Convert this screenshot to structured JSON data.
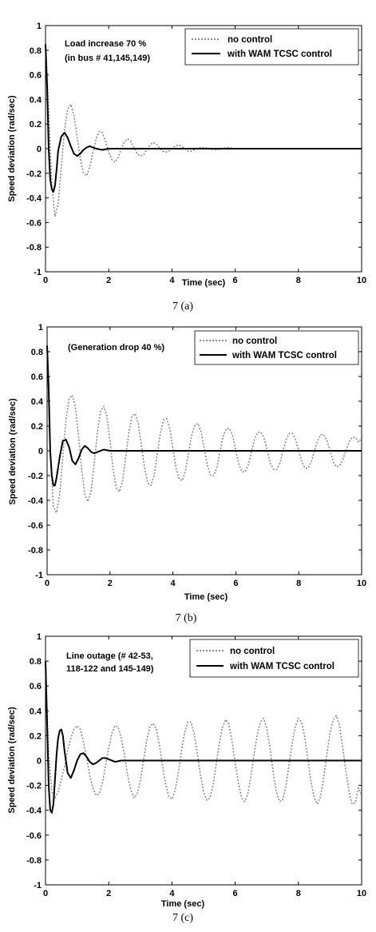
{
  "chart_data": [
    {
      "type": "line",
      "caption": "7 (a)",
      "xlabel": "Time (sec)",
      "ylabel": "Speed deviation (rad/sec)",
      "xlim": [
        0,
        10
      ],
      "ylim": [
        -1,
        1
      ],
      "xticks": [
        "0",
        "2",
        "4",
        "6",
        "8",
        "10"
      ],
      "yticks": [
        "1",
        "0.8",
        "0.6",
        "0.4",
        "0.2",
        "0",
        "-0.2",
        "-0.4",
        "-0.6",
        "-0.8",
        "-1"
      ],
      "annotation": [
        "Load increase 70 %",
        "(in bus # 41,145,149)"
      ],
      "legend_position": "top-right",
      "grid": false,
      "series": [
        {
          "name": "no control",
          "style": "dotted",
          "color": "#8a8a8a",
          "x": [
            0,
            0.05,
            0.1,
            0.15,
            0.2,
            0.3,
            0.4,
            0.5,
            0.6,
            0.7,
            0.8,
            0.9,
            1.0,
            1.1,
            1.2,
            1.3,
            1.4,
            1.5,
            1.6,
            1.7,
            1.8,
            1.9,
            2.0,
            2.1,
            2.2,
            2.3,
            2.4,
            2.5,
            2.6,
            2.7,
            2.8,
            2.9,
            3.0,
            3.1,
            3.2,
            3.3,
            3.4,
            3.5,
            3.6,
            3.7,
            3.8,
            3.9,
            4.0,
            4.1,
            4.2,
            4.3,
            4.4,
            4.5,
            4.6,
            4.7,
            4.8,
            4.9,
            5.0,
            5.2,
            5.4,
            5.6,
            5.8,
            6.0,
            6.2,
            6.4,
            6.6
          ],
          "y": [
            0.85,
            0.6,
            0.3,
            0.0,
            -0.3,
            -0.55,
            -0.45,
            -0.15,
            0.15,
            0.32,
            0.36,
            0.27,
            0.1,
            -0.08,
            -0.2,
            -0.22,
            -0.15,
            -0.03,
            0.08,
            0.14,
            0.13,
            0.06,
            -0.03,
            -0.09,
            -0.11,
            -0.07,
            0.0,
            0.06,
            0.08,
            0.06,
            0.01,
            -0.04,
            -0.06,
            -0.05,
            -0.01,
            0.03,
            0.05,
            0.04,
            0.01,
            -0.02,
            -0.03,
            -0.02,
            0.0,
            0.02,
            0.03,
            0.02,
            0.0,
            -0.02,
            -0.02,
            -0.01,
            0.0,
            0.01,
            0.01,
            0.0,
            -0.01,
            0.0,
            0.01,
            0.0,
            0.0,
            0.0,
            0.0
          ]
        },
        {
          "name": "with WAM TCSC control",
          "style": "solid",
          "color": "#000000",
          "x": [
            0,
            0.05,
            0.1,
            0.15,
            0.2,
            0.25,
            0.3,
            0.35,
            0.4,
            0.5,
            0.6,
            0.7,
            0.8,
            0.9,
            1.0,
            1.1,
            1.2,
            1.3,
            1.4,
            1.5,
            1.6,
            1.8,
            2.0,
            2.5,
            3.0,
            4.0,
            5.0,
            6.0,
            7.0,
            8.0,
            9.0,
            10.0
          ],
          "y": [
            0.85,
            0.5,
            0.0,
            -0.25,
            -0.33,
            -0.35,
            -0.3,
            -0.17,
            -0.02,
            0.1,
            0.13,
            0.09,
            0.02,
            -0.04,
            -0.06,
            -0.04,
            -0.01,
            0.01,
            0.02,
            0.01,
            0.0,
            -0.01,
            0.0,
            0.0,
            0.0,
            0.0,
            0.0,
            0.0,
            0.0,
            0.0,
            0.0,
            0.0
          ]
        }
      ]
    },
    {
      "type": "line",
      "caption": "7 (b)",
      "xlabel": "Time (sec)",
      "ylabel": "Speed deviation (rad/sec)",
      "xlim": [
        0,
        10
      ],
      "ylim": [
        -1,
        1
      ],
      "xticks": [
        "0",
        "2",
        "4",
        "6",
        "8",
        "10"
      ],
      "yticks": [
        "1",
        "0.8",
        "0.6",
        "0.4",
        "0.2",
        "0",
        "-0.2",
        "-0.4",
        "-0.6",
        "-0.8",
        "-1"
      ],
      "annotation": [
        "(Generation drop 40 %)"
      ],
      "legend_position": "top-right",
      "grid": false,
      "series": [
        {
          "name": "no control",
          "style": "dotted",
          "color": "#8a8a8a",
          "x": [
            0,
            0.05,
            0.1,
            0.2,
            0.3,
            0.4,
            0.5,
            0.6,
            0.7,
            0.8,
            0.9,
            1.0,
            1.1,
            1.2,
            1.3,
            1.4,
            1.5,
            1.6,
            1.7,
            1.8,
            1.9,
            2.0,
            2.1,
            2.2,
            2.3,
            2.4,
            2.5,
            2.6,
            2.7,
            2.8,
            2.9,
            3.0,
            3.1,
            3.2,
            3.3,
            3.4,
            3.5,
            3.6,
            3.7,
            3.8,
            3.9,
            4.0,
            4.1,
            4.2,
            4.3,
            4.4,
            4.5,
            4.6,
            4.7,
            4.8,
            4.9,
            5.0,
            5.1,
            5.2,
            5.3,
            5.4,
            5.5,
            5.6,
            5.7,
            5.8,
            5.9,
            6.0,
            6.1,
            6.2,
            6.3,
            6.4,
            6.5,
            6.6,
            6.7,
            6.8,
            6.9,
            7.0,
            7.1,
            7.2,
            7.3,
            7.4,
            7.5,
            7.6,
            7.7,
            7.8,
            7.9,
            8.0,
            8.1,
            8.2,
            8.3,
            8.4,
            8.5,
            8.6,
            8.7,
            8.8,
            8.9,
            9.0,
            9.1,
            9.2,
            9.3,
            9.4,
            9.5,
            9.6,
            9.7,
            9.8,
            9.9,
            10.0
          ],
          "y": [
            0.85,
            0.4,
            0.0,
            -0.45,
            -0.5,
            -0.35,
            -0.05,
            0.25,
            0.42,
            0.45,
            0.35,
            0.12,
            -0.15,
            -0.35,
            -0.41,
            -0.32,
            -0.1,
            0.15,
            0.32,
            0.36,
            0.28,
            0.08,
            -0.15,
            -0.3,
            -0.33,
            -0.24,
            -0.05,
            0.15,
            0.28,
            0.3,
            0.22,
            0.04,
            -0.14,
            -0.26,
            -0.28,
            -0.2,
            -0.03,
            0.14,
            0.25,
            0.26,
            0.18,
            0.02,
            -0.14,
            -0.23,
            -0.24,
            -0.16,
            -0.01,
            0.13,
            0.21,
            0.22,
            0.15,
            0.01,
            -0.12,
            -0.2,
            -0.2,
            -0.13,
            0.0,
            0.12,
            0.18,
            0.18,
            0.12,
            0.0,
            -0.11,
            -0.17,
            -0.17,
            -0.11,
            0.0,
            0.1,
            0.15,
            0.15,
            0.1,
            0.0,
            -0.1,
            -0.15,
            -0.15,
            -0.1,
            0.0,
            0.09,
            0.14,
            0.14,
            0.09,
            0.0,
            -0.09,
            -0.14,
            -0.14,
            -0.09,
            0.0,
            0.08,
            0.13,
            0.13,
            0.08,
            0.0,
            -0.09,
            -0.13,
            -0.12,
            -0.07,
            0.0,
            0.07,
            0.11,
            0.11,
            0.07,
            0.1
          ]
        },
        {
          "name": "with WAM TCSC control",
          "style": "solid",
          "color": "#000000",
          "x": [
            0,
            0.05,
            0.1,
            0.15,
            0.2,
            0.25,
            0.3,
            0.4,
            0.5,
            0.6,
            0.7,
            0.8,
            0.9,
            1.0,
            1.1,
            1.2,
            1.3,
            1.4,
            1.5,
            1.6,
            1.8,
            2.0,
            2.5,
            3.0,
            4.0,
            5.0,
            6.0,
            7.0,
            8.0,
            9.0,
            10.0
          ],
          "y": [
            0.85,
            0.5,
            0.0,
            -0.2,
            -0.28,
            -0.28,
            -0.22,
            -0.05,
            0.08,
            0.09,
            0.03,
            -0.08,
            -0.11,
            -0.06,
            0.01,
            0.04,
            0.02,
            -0.01,
            -0.02,
            -0.01,
            0.01,
            0.0,
            0.0,
            0.0,
            0.0,
            0.0,
            0.0,
            0.0,
            0.0,
            0.0,
            0.0
          ]
        }
      ]
    },
    {
      "type": "line",
      "caption": "7 (c)",
      "xlabel": "Time (sec)",
      "ylabel": "Speed deviation (rad/sec)",
      "xlim": [
        0,
        10
      ],
      "ylim": [
        -1,
        1
      ],
      "xticks": [
        "0",
        "2",
        "4",
        "6",
        "8",
        "10"
      ],
      "yticks": [
        "1",
        "0.8",
        "0.6",
        "0.4",
        "0.2",
        "0",
        "-0.2",
        "-0.4",
        "-0.6",
        "-0.8",
        "-1"
      ],
      "annotation": [
        "Line outage (# 42-53,",
        "118-122 and 145-149)"
      ],
      "legend_position": "top-right",
      "grid": false,
      "series": [
        {
          "name": "no control",
          "style": "dotted",
          "color": "#8a8a8a",
          "x": [
            0,
            0.05,
            0.1,
            0.2,
            0.3,
            0.4,
            0.5,
            0.6,
            0.7,
            0.8,
            0.9,
            1.0,
            1.1,
            1.2,
            1.3,
            1.4,
            1.5,
            1.6,
            1.7,
            1.8,
            1.9,
            2.0,
            2.1,
            2.2,
            2.3,
            2.4,
            2.5,
            2.6,
            2.7,
            2.8,
            2.9,
            3.0,
            3.1,
            3.2,
            3.3,
            3.4,
            3.5,
            3.6,
            3.7,
            3.8,
            3.9,
            4.0,
            4.1,
            4.2,
            4.3,
            4.4,
            4.5,
            4.6,
            4.7,
            4.8,
            4.9,
            5.0,
            5.1,
            5.2,
            5.3,
            5.4,
            5.5,
            5.6,
            5.7,
            5.8,
            5.9,
            6.0,
            6.1,
            6.2,
            6.3,
            6.4,
            6.5,
            6.6,
            6.7,
            6.8,
            6.9,
            7.0,
            7.1,
            7.2,
            7.3,
            7.4,
            7.5,
            7.6,
            7.7,
            7.8,
            7.9,
            8.0,
            8.1,
            8.2,
            8.3,
            8.4,
            8.5,
            8.6,
            8.7,
            8.8,
            8.9,
            9.0,
            9.1,
            9.2,
            9.3,
            9.4,
            9.5,
            9.6,
            9.7,
            9.8,
            9.9,
            10.0
          ],
          "y": [
            0.8,
            0.4,
            0.05,
            -0.25,
            -0.3,
            -0.25,
            -0.15,
            -0.05,
            0.08,
            0.18,
            0.25,
            0.28,
            0.25,
            0.15,
            0.02,
            -0.12,
            -0.22,
            -0.28,
            -0.27,
            -0.18,
            -0.04,
            0.1,
            0.22,
            0.28,
            0.27,
            0.18,
            0.04,
            -0.12,
            -0.24,
            -0.3,
            -0.27,
            -0.16,
            0.0,
            0.16,
            0.27,
            0.3,
            0.26,
            0.13,
            -0.04,
            -0.19,
            -0.29,
            -0.31,
            -0.24,
            -0.1,
            0.08,
            0.22,
            0.31,
            0.31,
            0.22,
            0.06,
            -0.11,
            -0.25,
            -0.32,
            -0.3,
            -0.2,
            -0.03,
            0.14,
            0.27,
            0.33,
            0.29,
            0.16,
            -0.02,
            -0.18,
            -0.3,
            -0.33,
            -0.27,
            -0.12,
            0.06,
            0.21,
            0.31,
            0.34,
            0.26,
            0.1,
            -0.09,
            -0.25,
            -0.33,
            -0.32,
            -0.21,
            -0.04,
            0.13,
            0.27,
            0.34,
            0.31,
            0.19,
            0.01,
            -0.17,
            -0.3,
            -0.35,
            -0.29,
            -0.14,
            0.05,
            0.22,
            0.33,
            0.36,
            0.28,
            0.11,
            -0.08,
            -0.25,
            -0.35,
            -0.34,
            -0.22,
            -0.28
          ]
        },
        {
          "name": "with WAM TCSC control",
          "style": "solid",
          "color": "#000000",
          "x": [
            0,
            0.05,
            0.1,
            0.15,
            0.2,
            0.25,
            0.3,
            0.35,
            0.4,
            0.45,
            0.5,
            0.55,
            0.6,
            0.7,
            0.8,
            0.9,
            1.0,
            1.1,
            1.2,
            1.3,
            1.4,
            1.5,
            1.6,
            1.7,
            1.8,
            1.9,
            2.0,
            2.2,
            2.4,
            2.6,
            3.0,
            4.0,
            5.0,
            6.0,
            7.0,
            8.0,
            9.0,
            10.0
          ],
          "y": [
            0.8,
            0.3,
            -0.2,
            -0.4,
            -0.42,
            -0.35,
            -0.15,
            0.05,
            0.18,
            0.24,
            0.25,
            0.2,
            0.08,
            -0.1,
            -0.14,
            -0.08,
            0.0,
            0.05,
            0.06,
            0.03,
            -0.01,
            -0.03,
            -0.02,
            0.0,
            0.02,
            0.02,
            0.01,
            -0.01,
            0.0,
            0.0,
            0.0,
            0.0,
            0.0,
            0.0,
            0.0,
            0.0,
            0.0,
            0.0
          ]
        }
      ]
    }
  ]
}
